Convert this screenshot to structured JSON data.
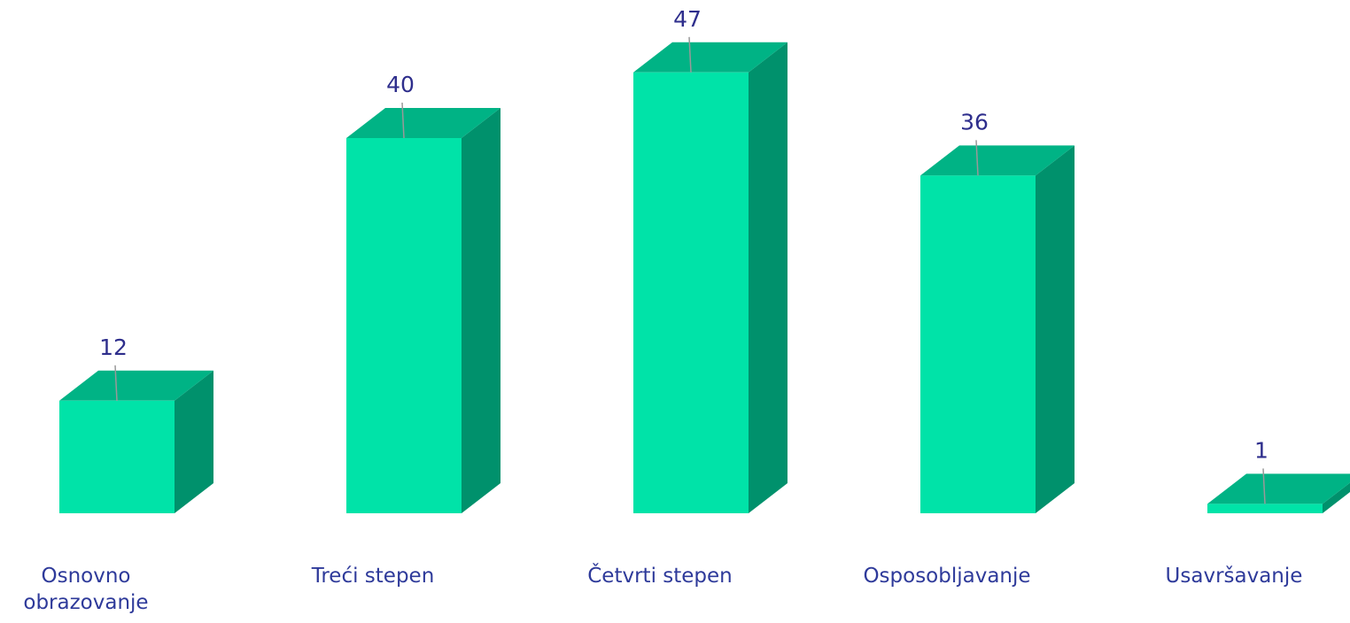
{
  "chart_data": {
    "type": "bar3d",
    "categories": [
      "Osnovno obrazovanje",
      "Treći stepen",
      "Četvrti stepen",
      "Osposobljavanje",
      "Usavršavanje"
    ],
    "values": [
      12,
      40,
      47,
      36,
      1
    ],
    "color": "#00e3a8"
  }
}
